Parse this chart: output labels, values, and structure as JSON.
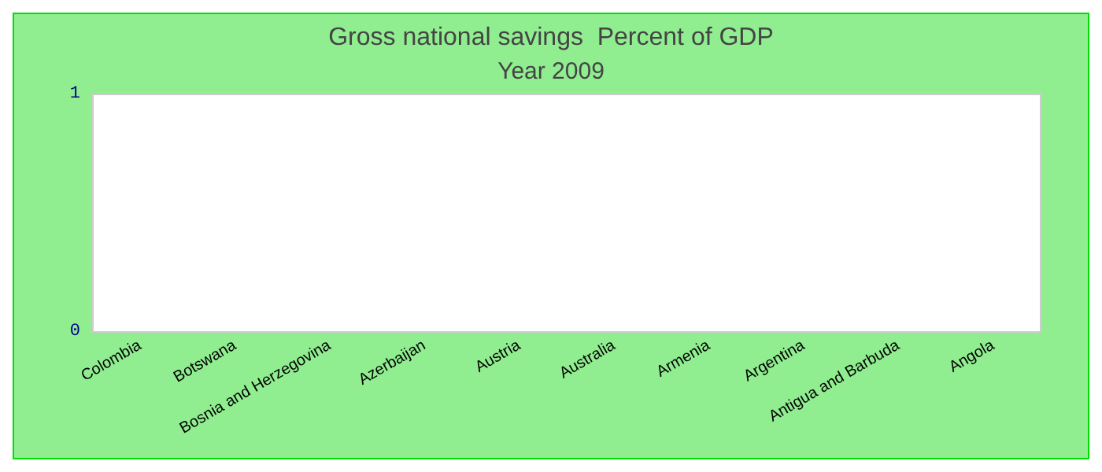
{
  "chart_data": {
    "type": "bar",
    "title": "Gross national savings  Percent of GDP",
    "subtitle": "Year 2009",
    "categories": [
      "Colombia",
      "Botswana",
      "Bosnia and Herzegovina",
      "Azerbaijan",
      "Austria",
      "Australia",
      "Armenia",
      "Argentina",
      "Antigua and Barbuda",
      "Angola"
    ],
    "values": [
      null,
      null,
      null,
      null,
      null,
      null,
      null,
      null,
      null,
      null
    ],
    "ylim": [
      0,
      1
    ],
    "yticks": [
      0,
      1
    ],
    "grid": false
  }
}
